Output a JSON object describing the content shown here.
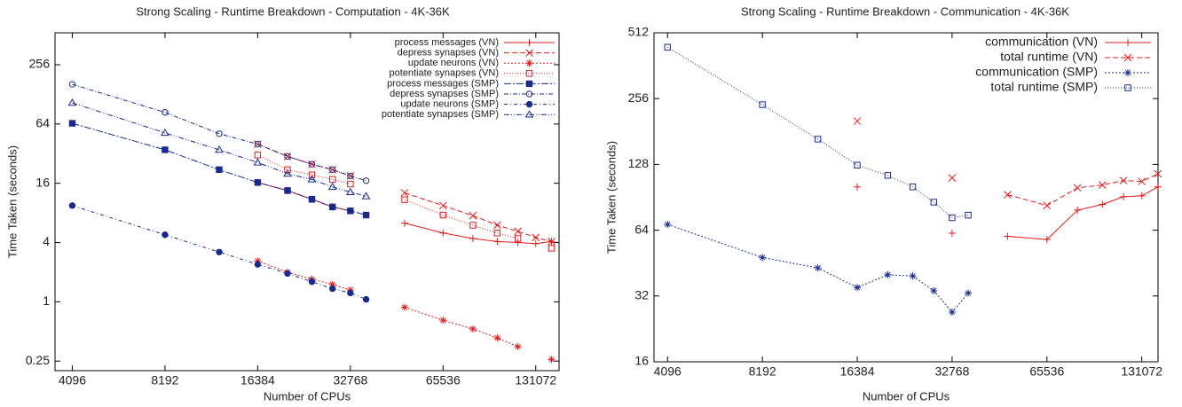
{
  "chart_data": [
    {
      "type": "line",
      "title": "Strong Scaling - Runtime Breakdown - Computation - 4K-36K",
      "x_label": "Number of CPUs",
      "y_label": "Time Taken (seconds)",
      "logx": true,
      "logy": true,
      "legend": "top-right",
      "xlim": [
        3600,
        156000
      ],
      "xticks": [
        4096,
        8192,
        16384,
        32768,
        65536,
        131072
      ],
      "ylim": [
        0.2,
        540
      ],
      "yticks": [
        0.25,
        1,
        4,
        16,
        64,
        256
      ],
      "x": [
        4096,
        8192,
        12288,
        16384,
        20480,
        24576,
        28672,
        32768,
        36864,
        49152,
        65536,
        81920,
        98304,
        114688,
        131072,
        147456
      ],
      "series": [
        {
          "name": "process messages (VN)",
          "color": "#e31a1a",
          "marker": "plus",
          "dash": "none",
          "values": [
            null,
            null,
            null,
            16.3,
            13.5,
            11,
            9.2,
            8.4,
            null,
            6.3,
            5.0,
            4.4,
            4.1,
            4.0,
            3.9,
            4.1
          ]
        },
        {
          "name": "depress synapses (VN)",
          "color": "#e31a1a",
          "marker": "cross",
          "dash": "6 3",
          "values": [
            null,
            null,
            null,
            40,
            30,
            25,
            22,
            19,
            null,
            12.8,
            9.5,
            7.5,
            6.0,
            5.2,
            4.5,
            4.1
          ]
        },
        {
          "name": "update neurons (VN)",
          "color": "#e31a1a",
          "marker": "star",
          "dash": "2 2",
          "values": [
            null,
            null,
            null,
            2.6,
            2.0,
            1.7,
            1.5,
            1.32,
            null,
            0.88,
            0.65,
            0.53,
            0.43,
            0.35,
            null,
            0.26
          ]
        },
        {
          "name": "potentiate synapses (VN)",
          "color": "#e31a1a",
          "marker": "square",
          "dash": "1 2",
          "values": [
            null,
            null,
            null,
            31,
            22,
            19.5,
            17.5,
            15.7,
            null,
            10.9,
            7.6,
            6.0,
            5.0,
            4.4,
            null,
            3.5
          ]
        },
        {
          "name": "process messages (SMP)",
          "color": "#1a2a8c",
          "marker": "filled-square",
          "dash": "8 2 2 2",
          "values": [
            65,
            35,
            22,
            16.3,
            13.5,
            11,
            9.2,
            8.4,
            7.6,
            null,
            null,
            null,
            null,
            null,
            null,
            null
          ]
        },
        {
          "name": "depress synapses (SMP)",
          "color": "#1a2a8c",
          "marker": "circle",
          "dash": "5 2 1 2",
          "values": [
            162,
            84,
            51,
            40,
            30,
            25,
            22,
            19,
            17,
            null,
            null,
            null,
            null,
            null,
            null,
            null
          ]
        },
        {
          "name": "update neurons (SMP)",
          "color": "#1a2a8c",
          "marker": "filled-circle",
          "dash": "4 3 1 3",
          "values": [
            9.5,
            4.8,
            3.2,
            2.4,
            1.94,
            1.6,
            1.36,
            1.23,
            1.06,
            null,
            null,
            null,
            null,
            null,
            null,
            null
          ]
        },
        {
          "name": "potentiate synapses (SMP)",
          "color": "#1a2a8c",
          "marker": "triangle",
          "dash": "6 2 1 2 1 2",
          "values": [
            105,
            52,
            35,
            26,
            20,
            17.5,
            14.7,
            13,
            11.8,
            null,
            null,
            null,
            null,
            null,
            null,
            null
          ]
        }
      ]
    },
    {
      "type": "line",
      "title": "Strong Scaling - Runtime Breakdown - Communication - 4K-36K",
      "x_label": "Number of CPUs",
      "y_label": "Time Taken (seconds)",
      "logx": true,
      "logy": true,
      "legend": "top-right",
      "xlim": [
        3710,
        147600
      ],
      "xticks": [
        4096,
        8192,
        16384,
        32768,
        65536,
        131072
      ],
      "ylim": [
        16,
        512
      ],
      "yticks": [
        16,
        32,
        64,
        128,
        256,
        512
      ],
      "x": [
        4096,
        8192,
        12288,
        16384,
        20480,
        24576,
        28672,
        32768,
        36864,
        49152,
        65536,
        81920,
        98304,
        114688,
        131072,
        147456
      ],
      "series": [
        {
          "name": "communication (VN)",
          "color": "#e31a1a",
          "marker": "plus",
          "dash": "none",
          "values": [
            null,
            null,
            null,
            101,
            null,
            null,
            null,
            62,
            null,
            60,
            58,
            79,
            84,
            91,
            92,
            101
          ]
        },
        {
          "name": "total runtime (VN)",
          "color": "#e31a1a",
          "marker": "cross",
          "dash": "6 3",
          "values": [
            null,
            null,
            null,
            202,
            null,
            null,
            null,
            111,
            null,
            93,
            83,
            100,
            103,
            108,
            107,
            116
          ]
        },
        {
          "name": "communication (SMP)",
          "color": "#1a2a8c",
          "marker": "star",
          "dash": "2 2",
          "values": [
            68,
            48,
            43,
            35,
            40,
            39.5,
            33.8,
            27,
            33,
            null,
            null,
            null,
            null,
            null,
            null,
            null
          ]
        },
        {
          "name": "total runtime (SMP)",
          "color": "#1a2a8c",
          "marker": "square",
          "dash": "1 2",
          "values": [
            440,
            240,
            167,
            127,
            114,
            101,
            86,
            73,
            75,
            null,
            null,
            null,
            null,
            null,
            null,
            null
          ]
        }
      ]
    }
  ]
}
